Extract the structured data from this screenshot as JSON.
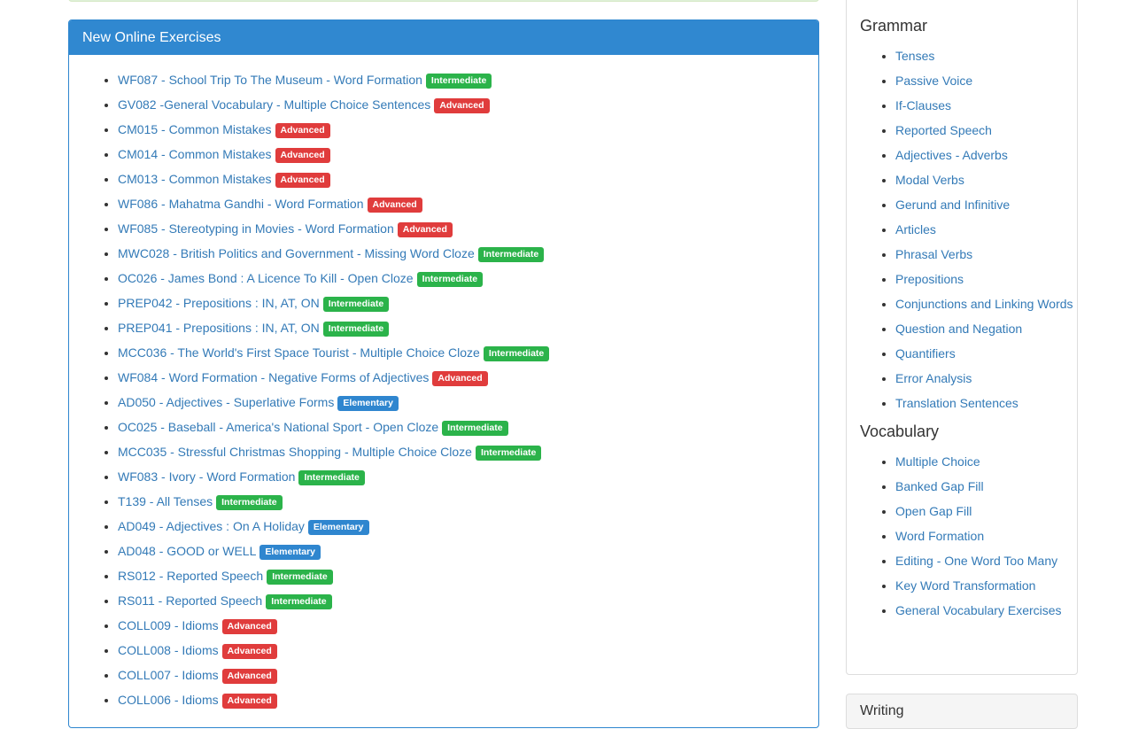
{
  "colors": {
    "Intermediate": "#2bb34a",
    "Advanced": "#e03c3c",
    "Elementary": "#2f86cf"
  },
  "panel": {
    "title": "New Online Exercises",
    "items": [
      {
        "t": "WF087 - School Trip To The Museum - Word Formation",
        "l": "Intermediate"
      },
      {
        "t": "GV082 -General Vocabulary - Multiple Choice Sentences",
        "l": "Advanced"
      },
      {
        "t": "CM015 - Common Mistakes",
        "l": "Advanced"
      },
      {
        "t": "CM014 - Common Mistakes",
        "l": "Advanced"
      },
      {
        "t": "CM013 - Common Mistakes",
        "l": "Advanced"
      },
      {
        "t": "WF086 - Mahatma Gandhi - Word Formation",
        "l": "Advanced"
      },
      {
        "t": "WF085 - Stereotyping in Movies - Word Formation",
        "l": "Advanced"
      },
      {
        "t": "MWC028 - British Politics and Government - Missing Word Cloze",
        "l": "Intermediate"
      },
      {
        "t": "OC026 - James Bond : A Licence To Kill - Open Cloze",
        "l": "Intermediate"
      },
      {
        "t": "PREP042 - Prepositions : IN, AT, ON",
        "l": "Intermediate"
      },
      {
        "t": "PREP041 - Prepositions : IN, AT, ON",
        "l": "Intermediate"
      },
      {
        "t": "MCC036 - The World's First Space Tourist - Multiple Choice Cloze",
        "l": "Intermediate"
      },
      {
        "t": "WF084 - Word Formation - Negative Forms of Adjectives",
        "l": "Advanced"
      },
      {
        "t": "AD050 - Adjectives - Superlative Forms",
        "l": "Elementary"
      },
      {
        "t": "OC025 - Baseball - America's National Sport - Open Cloze",
        "l": "Intermediate"
      },
      {
        "t": "MCC035 - Stressful Christmas Shopping - Multiple Choice Cloze",
        "l": "Intermediate"
      },
      {
        "t": "WF083 - Ivory - Word Formation",
        "l": "Intermediate"
      },
      {
        "t": "T139 - All Tenses",
        "l": "Intermediate"
      },
      {
        "t": "AD049 - Adjectives : On A Holiday",
        "l": "Elementary"
      },
      {
        "t": "AD048 - GOOD or WELL",
        "l": "Elementary"
      },
      {
        "t": "RS012 - Reported Speech",
        "l": "Intermediate"
      },
      {
        "t": "RS011 - Reported Speech",
        "l": "Intermediate"
      },
      {
        "t": "COLL009 - Idioms",
        "l": "Advanced"
      },
      {
        "t": "COLL008 - Idioms",
        "l": "Advanced"
      },
      {
        "t": "COLL007 - Idioms",
        "l": "Advanced"
      },
      {
        "t": "COLL006 - Idioms",
        "l": "Advanced"
      }
    ]
  },
  "sidebar": {
    "sections": [
      {
        "title": "Grammar",
        "items": [
          "Tenses",
          "Passive Voice",
          "If-Clauses",
          "Reported Speech",
          "Adjectives - Adverbs",
          "Modal Verbs",
          "Gerund and Infinitive",
          "Articles",
          "Phrasal Verbs",
          "Prepositions",
          "Conjunctions and Linking Words",
          "Question and Negation",
          "Quantifiers",
          "Error Analysis",
          "Translation Sentences"
        ]
      },
      {
        "title": "Vocabulary",
        "items": [
          "Multiple Choice",
          "Banked Gap Fill",
          "Open Gap Fill",
          "Word Formation",
          "Editing - One Word Too Many",
          "Key Word Transformation",
          "General Vocabulary Exercises"
        ]
      }
    ]
  },
  "writing": {
    "title": "Writing"
  }
}
